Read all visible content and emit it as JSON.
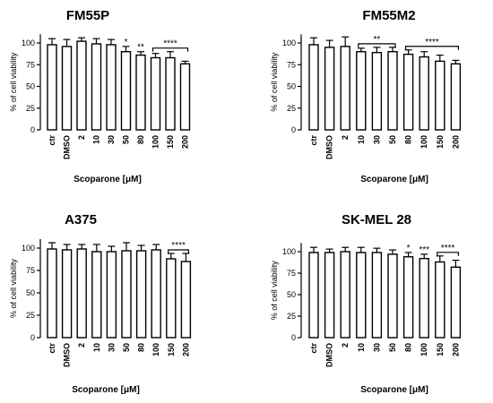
{
  "chart_data": [
    {
      "type": "bar",
      "title": "FM55P",
      "ylabel": "% of cell viability",
      "xlabel": "Scoparone [μM]",
      "categories": [
        "ctr",
        "DMSO",
        "2",
        "10",
        "30",
        "50",
        "80",
        "100",
        "150",
        "200"
      ],
      "values": [
        98,
        96,
        102,
        99,
        98,
        90,
        86,
        83,
        83,
        76
      ],
      "errors": [
        7,
        8,
        4,
        6,
        6,
        6,
        4,
        5,
        7,
        3
      ],
      "yticks": [
        0,
        25,
        50,
        75,
        100
      ],
      "ylim": [
        0,
        110
      ],
      "annotations": [
        {
          "category": "50",
          "text": "*"
        },
        {
          "category": "80",
          "text": "**"
        }
      ],
      "brackets": [
        {
          "from": "100",
          "to": "200",
          "text": "****"
        }
      ]
    },
    {
      "type": "bar",
      "title": "FM55M2",
      "ylabel": "% of cell viability",
      "xlabel": "Scoparone [μM]",
      "categories": [
        "ctr",
        "DMSO",
        "2",
        "10",
        "30",
        "50",
        "80",
        "100",
        "150",
        "200"
      ],
      "values": [
        98,
        95,
        96,
        90,
        89,
        90,
        87,
        84,
        79,
        76
      ],
      "errors": [
        8,
        8,
        11,
        4,
        6,
        5,
        5,
        6,
        7,
        4
      ],
      "yticks": [
        0,
        25,
        50,
        75,
        100
      ],
      "ylim": [
        0,
        110
      ],
      "annotations": [],
      "brackets": [
        {
          "from": "10",
          "to": "50",
          "text": "**"
        },
        {
          "from": "80",
          "to": "200",
          "text": "****"
        }
      ]
    },
    {
      "type": "bar",
      "title": "A375",
      "ylabel": "% of cell viability",
      "xlabel": "Scoparone [μM]",
      "categories": [
        "ctr",
        "DMSO",
        "2",
        "10",
        "30",
        "50",
        "80",
        "100",
        "150",
        "200"
      ],
      "values": [
        99,
        98,
        99,
        96,
        96,
        97,
        97,
        98,
        88,
        85
      ],
      "errors": [
        7,
        6,
        5,
        8,
        6,
        9,
        6,
        6,
        6,
        9
      ],
      "yticks": [
        0,
        25,
        50,
        75,
        100
      ],
      "ylim": [
        0,
        110
      ],
      "annotations": [],
      "brackets": [
        {
          "from": "150",
          "to": "200",
          "text": "****"
        }
      ]
    },
    {
      "type": "bar",
      "title": "SK-MEL 28",
      "ylabel": "% of cell viability",
      "xlabel": "Scoparone [μM]",
      "categories": [
        "ctr",
        "DMSO",
        "2",
        "10",
        "30",
        "50",
        "80",
        "100",
        "150",
        "200"
      ],
      "values": [
        99,
        99,
        100,
        99,
        99,
        97,
        94,
        92,
        88,
        82
      ],
      "errors": [
        6,
        4,
        5,
        6,
        5,
        5,
        5,
        5,
        7,
        8
      ],
      "yticks": [
        0,
        25,
        50,
        75,
        100
      ],
      "ylim": [
        0,
        110
      ],
      "annotations": [
        {
          "category": "80",
          "text": "*"
        },
        {
          "category": "100",
          "text": "***"
        }
      ],
      "brackets": [
        {
          "from": "150",
          "to": "200",
          "text": "****"
        }
      ]
    }
  ]
}
